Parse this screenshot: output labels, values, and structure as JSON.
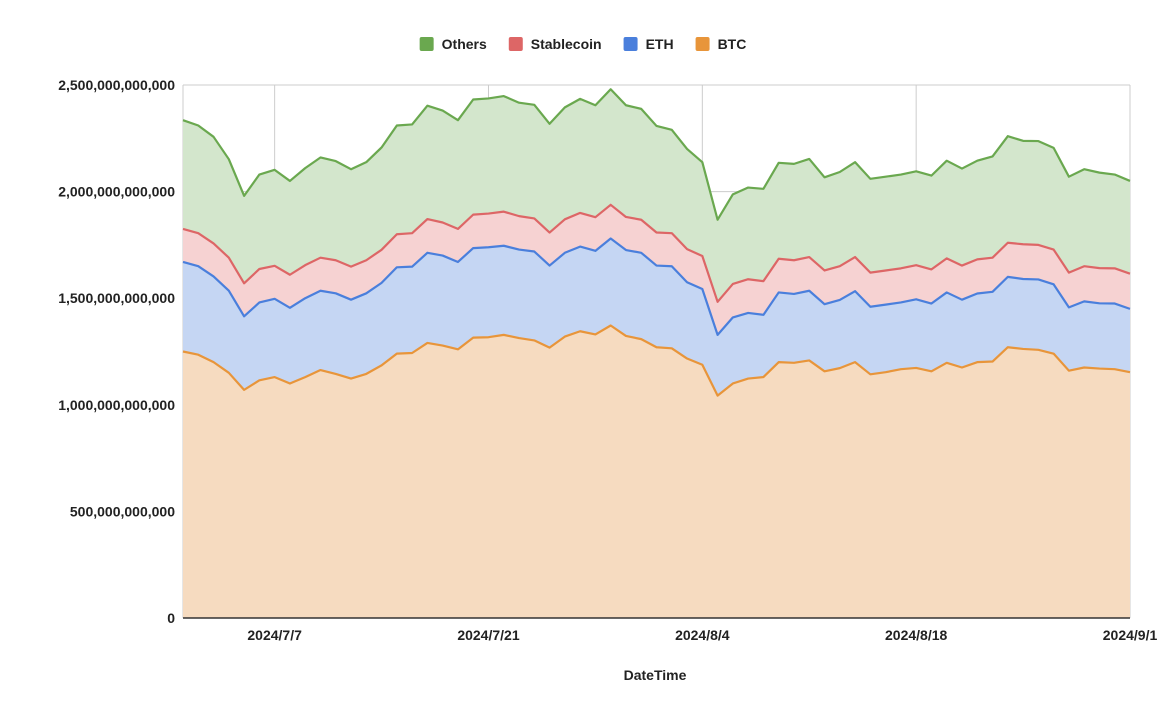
{
  "chart_data": {
    "type": "area",
    "stacked": true,
    "xlabel": "DateTime",
    "ylabel": "",
    "ylim": [
      0,
      2500000000000
    ],
    "y_ticks": [
      0,
      500000000000,
      1000000000000,
      1500000000000,
      2000000000000,
      2500000000000
    ],
    "y_tick_labels": [
      "0",
      "500,000,000,000",
      "1,000,000,000,000",
      "1,500,000,000,000",
      "2,000,000,000,000",
      "2,500,000,000,000"
    ],
    "x_start": "2024-07-01",
    "x_end": "2024-09-01",
    "x_ticks": [
      "2024-07-07",
      "2024-07-21",
      "2024-08-04",
      "2024-08-18",
      "2024-09-01"
    ],
    "x_tick_labels": [
      "2024/7/7",
      "2024/7/21",
      "2024/8/4",
      "2024/8/18",
      "2024/9/1"
    ],
    "grid": true,
    "legend_position": "top",
    "legend_order": [
      "Others",
      "Stablecoin",
      "ETH",
      "BTC"
    ],
    "series": [
      {
        "name": "BTC",
        "color": "#e8953a",
        "fill": "#f6dbc0",
        "values": [
          1250000000000,
          1235000000000,
          1200000000000,
          1150000000000,
          1070000000000,
          1115000000000,
          1130000000000,
          1100000000000,
          1130000000000,
          1163000000000,
          1145000000000,
          1123000000000,
          1145000000000,
          1185000000000,
          1240000000000,
          1243000000000,
          1290000000000,
          1278000000000,
          1260000000000,
          1315000000000,
          1317000000000,
          1328000000000,
          1313000000000,
          1302000000000,
          1268000000000,
          1320000000000,
          1345000000000,
          1330000000000,
          1372000000000,
          1323000000000,
          1308000000000,
          1270000000000,
          1265000000000,
          1217000000000,
          1188000000000,
          1043000000000,
          1100000000000,
          1123000000000,
          1130000000000,
          1200000000000,
          1197000000000,
          1208000000000,
          1157000000000,
          1172000000000,
          1200000000000,
          1143000000000,
          1153000000000,
          1167000000000,
          1173000000000,
          1157000000000,
          1197000000000,
          1175000000000,
          1200000000000,
          1203000000000,
          1270000000000,
          1262000000000,
          1258000000000,
          1240000000000,
          1160000000000,
          1175000000000,
          1170000000000,
          1167000000000,
          1153000000000
        ]
      },
      {
        "name": "ETH",
        "color": "#4a7fdc",
        "fill": "#c5d6f3",
        "values": [
          420000000000,
          415000000000,
          402000000000,
          385000000000,
          345000000000,
          365000000000,
          367000000000,
          355000000000,
          370000000000,
          372000000000,
          378000000000,
          370000000000,
          378000000000,
          387000000000,
          405000000000,
          405000000000,
          423000000000,
          422000000000,
          410000000000,
          420000000000,
          422000000000,
          418000000000,
          415000000000,
          417000000000,
          385000000000,
          393000000000,
          397000000000,
          392000000000,
          408000000000,
          403000000000,
          405000000000,
          383000000000,
          385000000000,
          358000000000,
          355000000000,
          285000000000,
          310000000000,
          308000000000,
          292000000000,
          327000000000,
          323000000000,
          327000000000,
          315000000000,
          320000000000,
          333000000000,
          317000000000,
          317000000000,
          313000000000,
          322000000000,
          318000000000,
          330000000000,
          318000000000,
          322000000000,
          327000000000,
          330000000000,
          328000000000,
          330000000000,
          325000000000,
          297000000000,
          310000000000,
          306000000000,
          308000000000,
          297000000000
        ]
      },
      {
        "name": "Stablecoin",
        "color": "#dd6666",
        "fill": "#f6d2d2",
        "values": [
          155000000000,
          155000000000,
          155000000000,
          155000000000,
          155000000000,
          157000000000,
          155000000000,
          155000000000,
          155000000000,
          155000000000,
          155000000000,
          155000000000,
          155000000000,
          155000000000,
          155000000000,
          157000000000,
          158000000000,
          155000000000,
          155000000000,
          157000000000,
          158000000000,
          160000000000,
          157000000000,
          155000000000,
          155000000000,
          157000000000,
          158000000000,
          158000000000,
          158000000000,
          155000000000,
          155000000000,
          155000000000,
          155000000000,
          155000000000,
          155000000000,
          155000000000,
          157000000000,
          158000000000,
          158000000000,
          158000000000,
          158000000000,
          158000000000,
          158000000000,
          158000000000,
          160000000000,
          160000000000,
          160000000000,
          160000000000,
          160000000000,
          160000000000,
          160000000000,
          160000000000,
          160000000000,
          160000000000,
          160000000000,
          163000000000,
          162000000000,
          163000000000,
          163000000000,
          165000000000,
          165000000000,
          165000000000,
          165000000000
        ]
      },
      {
        "name": "Others",
        "color": "#6aa84f",
        "fill": "#d3e6cc",
        "values": [
          510000000000,
          505000000000,
          500000000000,
          462000000000,
          410000000000,
          443000000000,
          450000000000,
          440000000000,
          455000000000,
          470000000000,
          465000000000,
          457000000000,
          460000000000,
          480000000000,
          510000000000,
          510000000000,
          532000000000,
          525000000000,
          510000000000,
          540000000000,
          540000000000,
          542000000000,
          532000000000,
          533000000000,
          510000000000,
          525000000000,
          535000000000,
          525000000000,
          542000000000,
          524000000000,
          520000000000,
          500000000000,
          485000000000,
          470000000000,
          440000000000,
          385000000000,
          420000000000,
          430000000000,
          433000000000,
          450000000000,
          452000000000,
          460000000000,
          437000000000,
          442000000000,
          445000000000,
          440000000000,
          440000000000,
          440000000000,
          440000000000,
          440000000000,
          458000000000,
          455000000000,
          463000000000,
          475000000000,
          500000000000,
          485000000000,
          487000000000,
          477000000000,
          450000000000,
          455000000000,
          448000000000,
          440000000000,
          435000000000
        ]
      }
    ]
  }
}
